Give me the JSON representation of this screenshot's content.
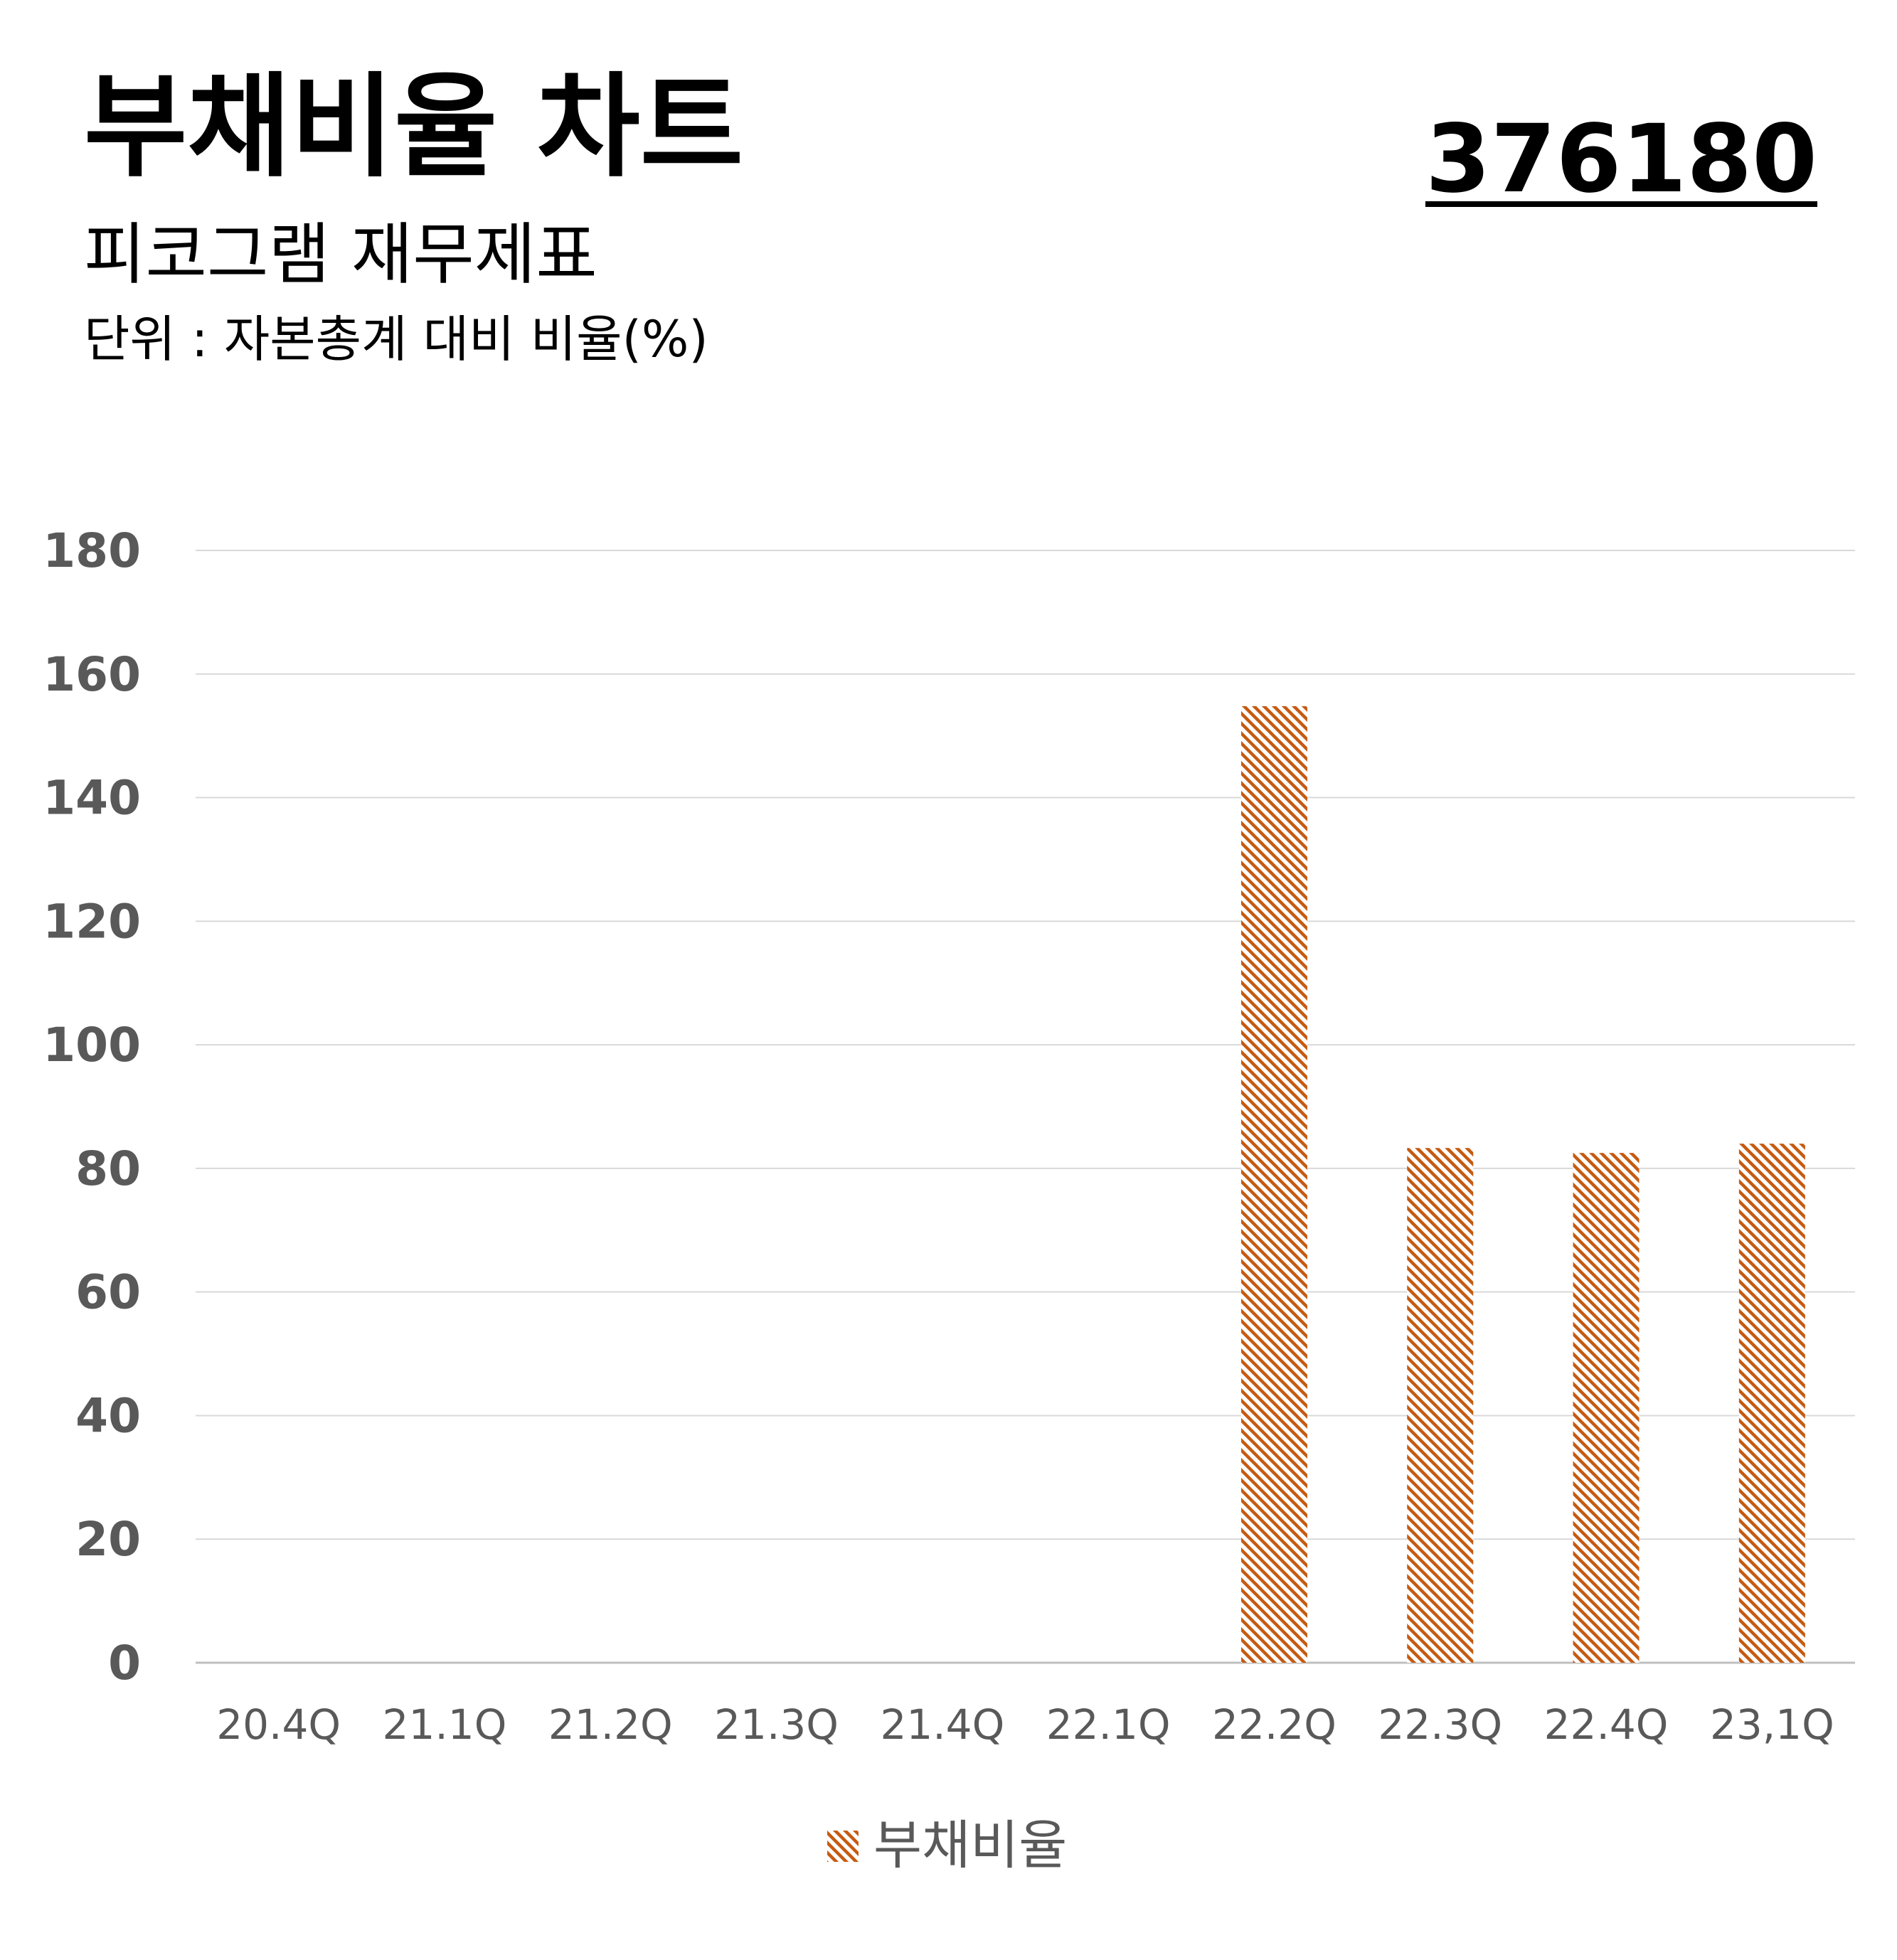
{
  "header": {
    "title": "부채비율 차트",
    "subtitle": "피코그램 재무제표",
    "unit": "단위 : 자본총계 대비 비율(%)",
    "code": "376180"
  },
  "colors": {
    "bar": "#c55a11",
    "grid": "#d9d9d9",
    "axis": "#bfbfbf",
    "tick": "#595959"
  },
  "chart_data": {
    "type": "bar",
    "categories": [
      "20.4Q",
      "21.1Q",
      "21.2Q",
      "21.3Q",
      "21.4Q",
      "22.1Q",
      "22.2Q",
      "22.3Q",
      "22.4Q",
      "23,1Q"
    ],
    "series": [
      {
        "name": "부채비율",
        "values": [
          null,
          null,
          null,
          null,
          null,
          null,
          154.8,
          83.3,
          82.5,
          84.0
        ],
        "color": "#c55a11",
        "pattern": "diagonal-hatch"
      }
    ],
    "yticks": [
      0,
      20,
      40,
      60,
      80,
      100,
      120,
      140,
      160,
      180
    ],
    "ylim": [
      0,
      180
    ],
    "grid": true,
    "legend": "bottom-center"
  }
}
